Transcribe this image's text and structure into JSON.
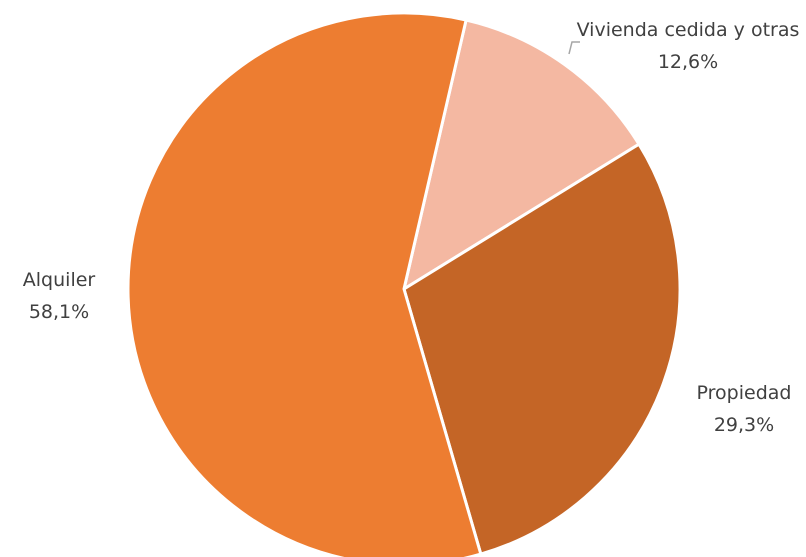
{
  "chart_data": {
    "type": "pie",
    "categories": [
      "Vivienda cedida y otras",
      "Propiedad",
      "Alquiler"
    ],
    "values": [
      12.6,
      29.3,
      58.1
    ],
    "value_labels": [
      "12,6%",
      "29,3%",
      "58,1%"
    ],
    "colors": [
      "#f4b8a2",
      "#c46526",
      "#ed7d31"
    ]
  }
}
